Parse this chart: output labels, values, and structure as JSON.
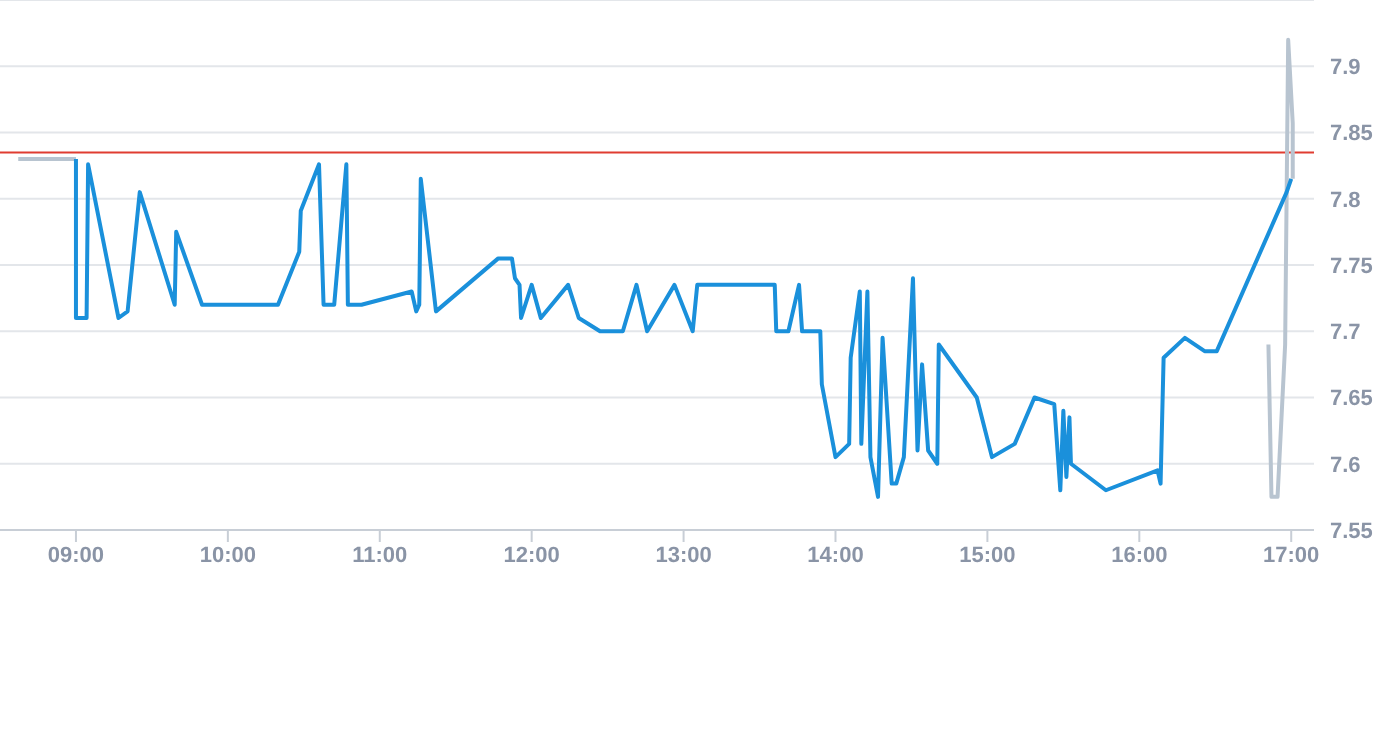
{
  "chart_data": {
    "type": "line",
    "xlim": [
      8.5,
      17.15
    ],
    "ylim": [
      7.55,
      7.95
    ],
    "xticks": [
      {
        "value": 9,
        "label": "09:00"
      },
      {
        "value": 10,
        "label": "10:00"
      },
      {
        "value": 11,
        "label": "11:00"
      },
      {
        "value": 12,
        "label": "12:00"
      },
      {
        "value": 13,
        "label": "13:00"
      },
      {
        "value": 14,
        "label": "14:00"
      },
      {
        "value": 15,
        "label": "15:00"
      },
      {
        "value": 16,
        "label": "16:00"
      },
      {
        "value": 17,
        "label": "17:00"
      }
    ],
    "yticks": [
      7.55,
      7.6,
      7.65,
      7.7,
      7.75,
      7.8,
      7.85,
      7.9
    ],
    "grid": "y",
    "legend": false,
    "marker": "none",
    "line_style": "solid",
    "ref_lines": [
      {
        "axis": "y",
        "value": 7.835,
        "color": "#e03c31"
      }
    ],
    "series": [
      {
        "color": "#b8c4d0",
        "x": [
          8.62,
          9.0
        ],
        "values": [
          7.83,
          7.83
        ]
      },
      {
        "color": "#b8c4d0",
        "x": [
          16.85,
          16.87,
          16.91,
          16.96,
          16.98,
          17.01,
          17.01
        ],
        "values": [
          7.69,
          7.575,
          7.575,
          7.69,
          7.92,
          7.857,
          7.815
        ]
      },
      {
        "color": "#1a90db",
        "x": [
          9.0,
          9.0,
          9.07,
          9.08,
          9.28,
          9.34,
          9.42,
          9.65,
          9.66,
          9.83,
          10.33,
          10.47,
          10.48,
          10.6,
          10.63,
          10.7,
          10.78,
          10.79,
          10.88,
          11.21,
          11.24,
          11.26,
          11.27,
          11.37,
          11.78,
          11.87,
          11.89,
          11.92,
          11.93,
          12.0,
          12.06,
          12.24,
          12.31,
          12.45,
          12.6,
          12.69,
          12.76,
          12.94,
          13.06,
          13.09,
          13.6,
          13.61,
          13.69,
          13.76,
          13.78,
          13.9,
          13.91,
          14.0,
          14.09,
          14.1,
          14.16,
          14.17,
          14.21,
          14.23,
          14.28,
          14.31,
          14.37,
          14.4,
          14.45,
          14.51,
          14.54,
          14.57,
          14.61,
          14.67,
          14.68,
          14.93,
          15.03,
          15.18,
          15.31,
          15.44,
          15.48,
          15.5,
          15.52,
          15.54,
          15.55,
          15.78,
          16.12,
          16.14,
          16.16,
          16.3,
          16.43,
          16.51,
          16.97,
          17.0
        ],
        "values": [
          7.83,
          7.71,
          7.71,
          7.826,
          7.71,
          7.715,
          7.805,
          7.72,
          7.775,
          7.72,
          7.72,
          7.76,
          7.791,
          7.826,
          7.72,
          7.72,
          7.826,
          7.72,
          7.72,
          7.73,
          7.715,
          7.72,
          7.815,
          7.715,
          7.755,
          7.755,
          7.74,
          7.735,
          7.71,
          7.735,
          7.71,
          7.735,
          7.71,
          7.7,
          7.7,
          7.735,
          7.7,
          7.735,
          7.7,
          7.735,
          7.735,
          7.7,
          7.7,
          7.735,
          7.7,
          7.7,
          7.66,
          7.605,
          7.615,
          7.68,
          7.73,
          7.615,
          7.73,
          7.605,
          7.575,
          7.695,
          7.585,
          7.585,
          7.605,
          7.74,
          7.61,
          7.675,
          7.61,
          7.6,
          7.69,
          7.65,
          7.605,
          7.615,
          7.65,
          7.645,
          7.58,
          7.64,
          7.59,
          7.635,
          7.6,
          7.58,
          7.595,
          7.585,
          7.68,
          7.695,
          7.685,
          7.685,
          7.805,
          7.815
        ]
      }
    ]
  }
}
